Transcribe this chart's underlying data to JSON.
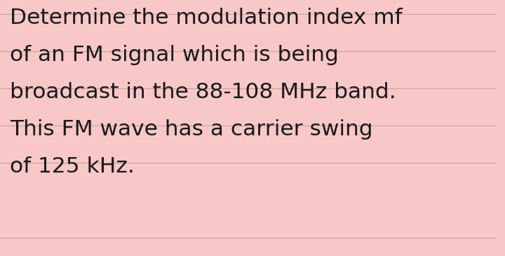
{
  "background_color": "#f8c8c8",
  "text_color": "#1a1a1a",
  "line_color": "#c8a0a0",
  "lines": [
    "Determine the modulation index mf",
    "of an FM signal which is being",
    "broadcast in the 88-108 MHz band.",
    "This FM wave has a carrier swing",
    "of 125 kHz."
  ],
  "font_size": 22.5,
  "font_family": "DejaVu Sans",
  "fig_width": 7.2,
  "fig_height": 3.65,
  "dpi": 100
}
